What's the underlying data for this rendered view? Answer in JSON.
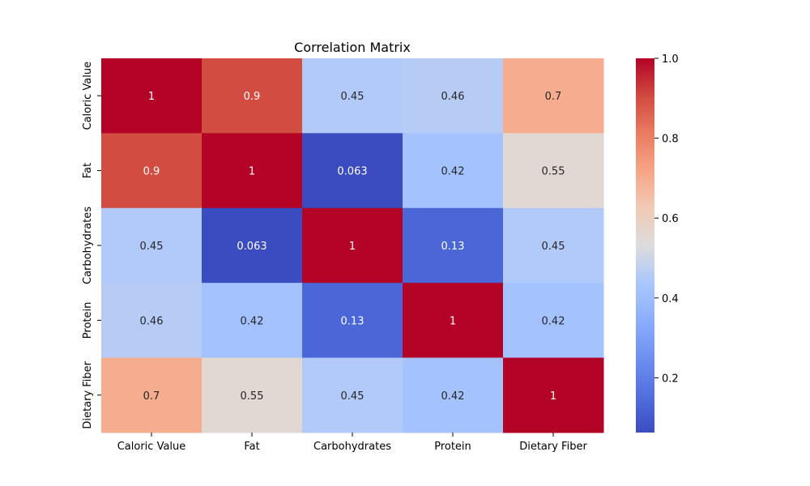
{
  "chart_data": {
    "type": "heatmap",
    "title": "Correlation Matrix",
    "x_categories": [
      "Caloric Value",
      "Fat",
      "Carbohydrates",
      "Protein",
      "Dietary Fiber"
    ],
    "y_categories": [
      "Caloric Value",
      "Fat",
      "Carbohydrates",
      "Protein",
      "Dietary Fiber"
    ],
    "values": [
      [
        1,
        0.9,
        0.45,
        0.46,
        0.7
      ],
      [
        0.9,
        1,
        0.063,
        0.42,
        0.55
      ],
      [
        0.45,
        0.063,
        1,
        0.13,
        0.45
      ],
      [
        0.46,
        0.42,
        0.13,
        1,
        0.42
      ],
      [
        0.7,
        0.55,
        0.45,
        0.42,
        1
      ]
    ],
    "cell_labels": [
      [
        "1",
        "0.9",
        "0.45",
        "0.46",
        "0.7"
      ],
      [
        "0.9",
        "1",
        "0.063",
        "0.42",
        "0.55"
      ],
      [
        "0.45",
        "0.063",
        "1",
        "0.13",
        "0.45"
      ],
      [
        "0.46",
        "0.42",
        "0.13",
        "1",
        "0.42"
      ],
      [
        "0.7",
        "0.55",
        "0.45",
        "0.42",
        "1"
      ]
    ],
    "colormap": "coolwarm",
    "vmin": 0.063,
    "vmax": 1.0,
    "colorbar_ticks": [
      "0.2",
      "0.4",
      "0.6",
      "0.8",
      "1.0"
    ],
    "colorbar_tick_values": [
      0.2,
      0.4,
      0.6,
      0.8,
      1.0
    ]
  }
}
